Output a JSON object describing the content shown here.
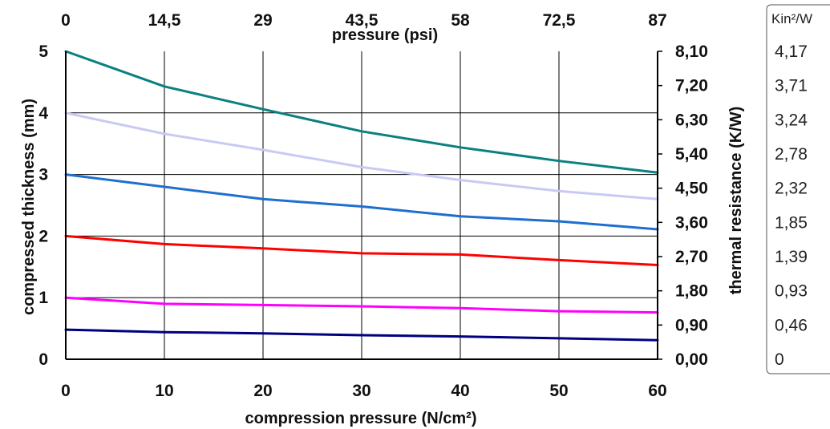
{
  "chart_data": {
    "type": "line",
    "x": [
      0,
      10,
      20,
      30,
      40,
      50,
      60
    ],
    "xlim": [
      0,
      60
    ],
    "ylim": [
      0,
      5
    ],
    "xlabel": "compression pressure (N/cm²)",
    "ylabel": "compressed thickness (mm)",
    "x_ticks": [
      "0",
      "10",
      "20",
      "30",
      "40",
      "50",
      "60"
    ],
    "y_ticks": [
      "0",
      "1",
      "2",
      "3",
      "4",
      "5"
    ],
    "top_axis": {
      "label": "pressure (psi)",
      "ticks": [
        "0",
        "14,5",
        "29",
        "43,5",
        "58",
        "72,5",
        "87"
      ]
    },
    "right_axis": {
      "label": "thermal resistance (K/W)",
      "ticks": [
        "0,00",
        "0,90",
        "1,80",
        "2,70",
        "3,60",
        "4,50",
        "5,40",
        "6,30",
        "7,20",
        "8,10"
      ]
    },
    "side_scale": {
      "unit": "Kin²/W",
      "ticks": [
        "4,17",
        "3,71",
        "3,24",
        "2,78",
        "2,32",
        "1,85",
        "1,39",
        "0,93",
        "0,46",
        "0"
      ]
    },
    "grid": true,
    "series": [
      {
        "color": "#0b8080",
        "values": [
          5.0,
          4.43,
          4.06,
          3.7,
          3.44,
          3.22,
          3.03
        ]
      },
      {
        "color": "#c9c9f5",
        "values": [
          4.0,
          3.66,
          3.4,
          3.12,
          2.91,
          2.73,
          2.6
        ]
      },
      {
        "color": "#1f6fcf",
        "values": [
          3.0,
          2.8,
          2.6,
          2.48,
          2.32,
          2.24,
          2.11
        ]
      },
      {
        "color": "#ff0000",
        "values": [
          2.0,
          1.87,
          1.8,
          1.72,
          1.7,
          1.61,
          1.53
        ]
      },
      {
        "color": "#ff00ff",
        "values": [
          1.0,
          0.9,
          0.88,
          0.86,
          0.83,
          0.78,
          0.76
        ]
      },
      {
        "color": "#000080",
        "values": [
          0.48,
          0.44,
          0.42,
          0.39,
          0.37,
          0.34,
          0.31
        ]
      }
    ]
  }
}
